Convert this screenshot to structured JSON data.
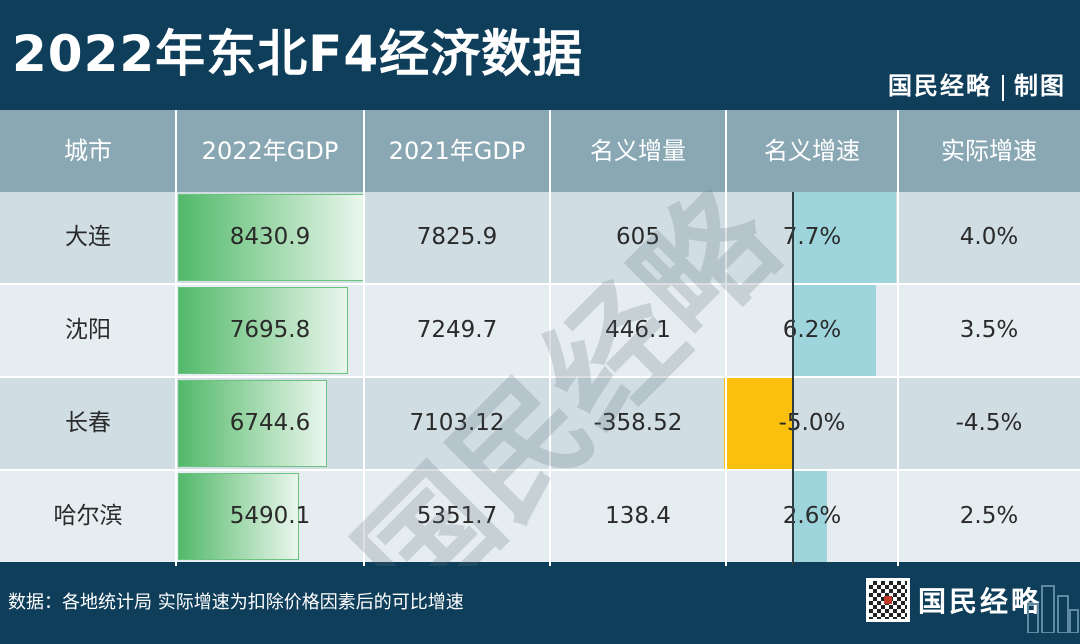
{
  "header": {
    "title": "2022年东北F4经济数据",
    "credit_brand": "国民经略",
    "credit_label": "制图"
  },
  "footer": {
    "source": "数据：各地统计局  实际增速为扣除价格因素后的可比增速",
    "brand": "国民经略"
  },
  "watermark": "国民经略",
  "colors": {
    "header_bg": "#0f3e5b",
    "column_header_bg": "#8aa8b4",
    "gdp_bar": "#52b96a",
    "positive_rate_bar": "#9ed5dd",
    "negative_rate_bar": "#fbbf0e"
  },
  "chart_data": {
    "type": "table",
    "columns": [
      "城市",
      "2022年GDP",
      "2021年GDP",
      "名义增量",
      "名义增速",
      "实际增速"
    ],
    "rows": [
      {
        "city": "大连",
        "gdp2022": "8430.9",
        "gdp2021": "7825.9",
        "increase": "605",
        "nominal": "7.7%",
        "real": "4.0%",
        "gdp_value": 8430.9,
        "nominal_value": 7.7
      },
      {
        "city": "沈阳",
        "gdp2022": "7695.8",
        "gdp2021": "7249.7",
        "increase": "446.1",
        "nominal": "6.2%",
        "real": "3.5%",
        "gdp_value": 7695.8,
        "nominal_value": 6.2
      },
      {
        "city": "长春",
        "gdp2022": "6744.6",
        "gdp2021": "7103.12",
        "increase": "-358.52",
        "nominal": "-5.0%",
        "real": "-4.5%",
        "gdp_value": 6744.6,
        "nominal_value": -5.0
      },
      {
        "city": "哈尔滨",
        "gdp2022": "5490.1",
        "gdp2021": "5351.7",
        "increase": "138.4",
        "nominal": "2.6%",
        "real": "2.5%",
        "gdp_value": 5490.1,
        "nominal_value": 2.6
      }
    ]
  }
}
